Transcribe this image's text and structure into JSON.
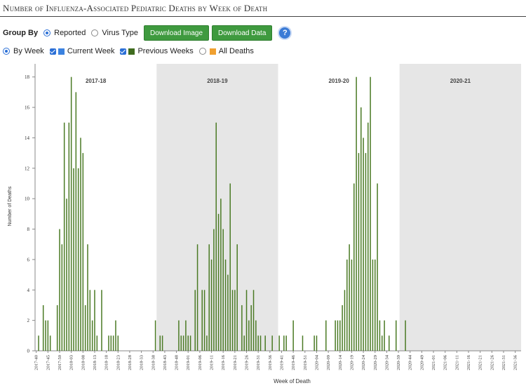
{
  "title": "Number of Influenza-Associated Pediatric Deaths by Week of Death",
  "controls": {
    "group_by_label": "Group By",
    "reported_label": "Reported",
    "virus_type_label": "Virus Type",
    "download_image_label": "Download Image",
    "download_data_label": "Download Data",
    "help_label": "?",
    "by_week_label": "By Week",
    "current_week_label": "Current Week",
    "previous_weeks_label": "Previous Weeks",
    "all_deaths_label": "All Deaths"
  },
  "colors": {
    "bar": "#4a7a24",
    "current_week": "#3b82e0",
    "previous_weeks": "#3f6b1e",
    "all_deaths": "#f0a030",
    "season_shade": "#e6e6e6",
    "button": "#3f9a3f"
  },
  "chart_data": {
    "type": "bar",
    "xlabel": "Week of Death",
    "ylabel": "Number of Deaths",
    "ylim": [
      0,
      19
    ],
    "yticks": [
      0,
      2,
      4,
      6,
      8,
      10,
      12,
      14,
      16,
      18
    ],
    "x_tick_labels": [
      "2017-40",
      "2017-45",
      "2017-50",
      "2018-03",
      "2018-08",
      "2018-13",
      "2018-18",
      "2018-23",
      "2018-28",
      "2018-33",
      "2018-38",
      "2018-43",
      "2018-48",
      "2019-01",
      "2019-06",
      "2019-11",
      "2019-16",
      "2019-21",
      "2019-26",
      "2019-31",
      "2019-36",
      "2019-41",
      "2019-46",
      "2019-51",
      "2020-04",
      "2020-09",
      "2020-14",
      "2020-19",
      "2020-24",
      "2020-29",
      "2020-34",
      "2020-39",
      "2020-44",
      "2020-49",
      "2021-01",
      "2021-06",
      "2021-11",
      "2021-16",
      "2021-21",
      "2021-26",
      "2021-31",
      "2021-36"
    ],
    "seasons": [
      {
        "label": "2017-18",
        "shaded": false
      },
      {
        "label": "2018-19",
        "shaded": true
      },
      {
        "label": "2019-20",
        "shaded": false
      },
      {
        "label": "2020-21",
        "shaded": true
      }
    ],
    "season_bounds": [
      [
        0,
        52
      ],
      [
        52,
        104
      ],
      [
        104,
        156
      ],
      [
        156,
        208
      ]
    ],
    "series": [
      {
        "values": [
          0,
          1,
          0,
          3,
          2,
          2,
          1,
          0,
          0,
          3,
          8,
          7,
          15,
          10,
          15,
          18,
          12,
          17,
          12,
          14,
          13,
          3,
          7,
          4,
          2,
          4,
          1,
          0,
          4,
          0,
          0,
          1,
          1,
          1,
          2,
          1,
          0,
          0,
          0,
          0,
          0,
          0,
          0,
          0,
          0,
          0,
          0,
          0,
          0,
          0,
          0,
          2,
          0,
          1,
          1,
          0,
          0,
          0,
          0,
          0,
          0,
          2,
          1,
          1,
          2,
          1,
          1,
          0,
          4,
          7,
          0,
          4,
          4,
          1,
          7,
          6,
          8,
          15,
          9,
          10,
          8,
          6,
          5,
          11,
          4,
          4,
          7,
          0,
          3,
          1,
          4,
          2,
          3,
          4,
          2,
          1,
          1,
          0,
          1,
          0,
          0,
          1,
          0,
          0,
          1,
          0,
          1,
          1,
          0,
          0,
          2,
          0,
          0,
          0,
          1,
          0,
          0,
          0,
          0,
          1,
          1,
          0,
          0,
          0,
          2,
          0,
          0,
          0,
          2,
          2,
          2,
          3,
          4,
          6,
          7,
          6,
          11,
          18,
          13,
          16,
          14,
          13,
          15,
          18,
          6,
          6,
          11,
          2,
          1,
          2,
          0,
          1,
          0,
          0,
          2,
          0,
          0,
          0,
          2,
          0,
          0,
          0,
          0,
          0,
          0,
          0,
          0,
          0,
          0,
          0,
          0,
          0,
          0,
          0,
          0,
          0,
          0,
          0,
          0,
          0,
          0,
          0,
          0,
          0,
          0,
          0,
          0,
          0,
          0,
          0,
          0,
          0,
          0,
          0,
          0,
          0,
          0,
          0,
          0,
          0,
          0,
          0,
          0,
          0,
          0,
          0,
          0,
          0
        ]
      }
    ],
    "grid": false
  }
}
